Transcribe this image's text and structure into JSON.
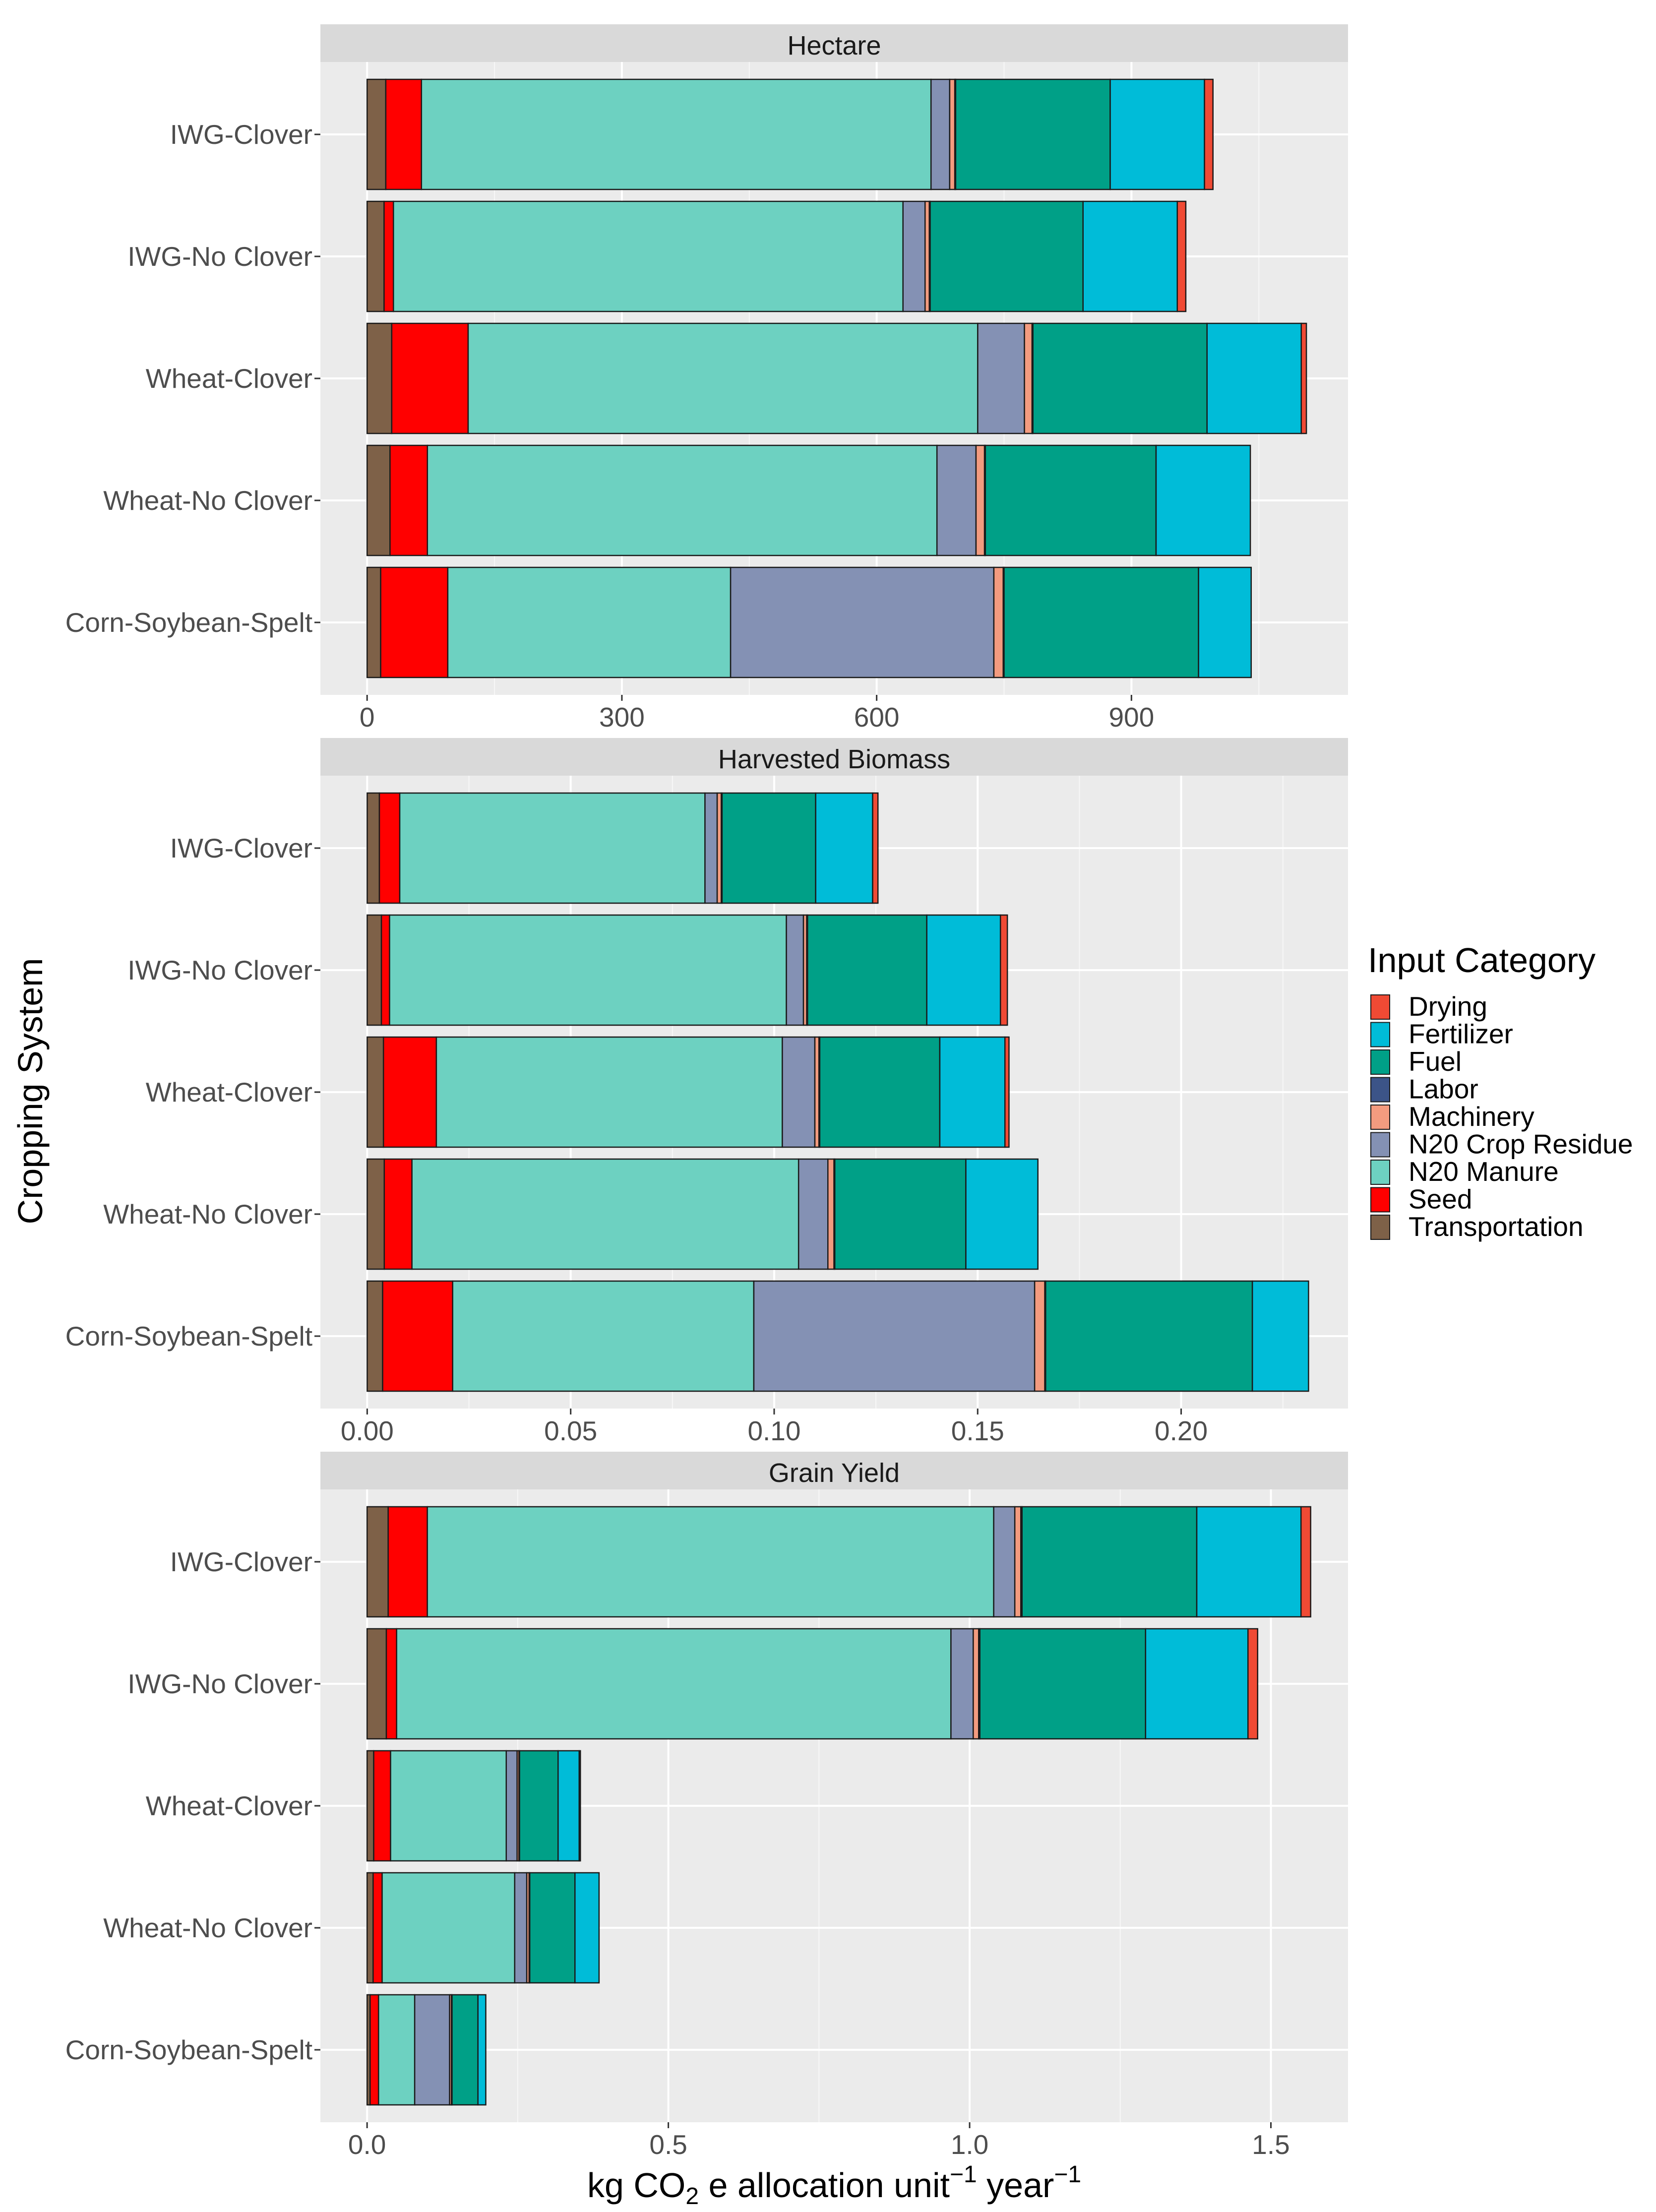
{
  "chart_data": {
    "type": "bar",
    "orientation": "horizontal",
    "stacked": true,
    "ylabel": "Cropping System",
    "xlabel": {
      "main": "kg CO",
      "sub": "2",
      "mid": " e allocation unit",
      "sup1": "−1",
      "mid2": " year",
      "sup2": "−1"
    },
    "legend": {
      "title": "Input Category",
      "placement": "right",
      "entries": [
        "Drying",
        "Fertilizer",
        "Fuel",
        "Labor",
        "Machinery",
        "N20 Crop Residue",
        "N20 Manure",
        "Seed",
        "Transportation"
      ]
    },
    "stack_order": [
      "Transportation",
      "Seed",
      "N20 Manure",
      "N20 Crop Residue",
      "Machinery",
      "Labor",
      "Fuel",
      "Fertilizer",
      "Drying"
    ],
    "colors": {
      "Drying": "#f04a34",
      "Fertilizer": "#00bcd8",
      "Fuel": "#00a087",
      "Labor": "#3c5488",
      "Machinery": "#f39b7f",
      "N20 Crop Residue": "#8491b4",
      "N20 Manure": "#6dd1c1",
      "Seed": "#ff0000",
      "Transportation": "#7e6148"
    },
    "categories": [
      "IWG-Clover",
      "IWG-No Clover",
      "Wheat-Clover",
      "Wheat-No Clover",
      "Corn-Soybean-Spelt"
    ],
    "panels": [
      {
        "title": "Hectare",
        "xlim": [
          -55,
          1155
        ],
        "ticks": [
          0,
          300,
          600,
          900
        ],
        "tick_labels": [
          "0",
          "300",
          "600",
          "900"
        ],
        "values": {
          "IWG-Clover": {
            "Transportation": 22,
            "Seed": 42,
            "N20 Manure": 600,
            "N20 Crop Residue": 22,
            "Machinery": 6,
            "Labor": 1,
            "Fuel": 182,
            "Fertilizer": 111,
            "Drying": 10
          },
          "IWG-No Clover": {
            "Transportation": 20,
            "Seed": 11,
            "N20 Manure": 600,
            "N20 Crop Residue": 26,
            "Machinery": 5,
            "Labor": 1,
            "Fuel": 180,
            "Fertilizer": 111,
            "Drying": 10
          },
          "Wheat-Clover": {
            "Transportation": 29,
            "Seed": 90,
            "N20 Manure": 600,
            "N20 Crop Residue": 55,
            "Machinery": 9,
            "Labor": 1,
            "Fuel": 205,
            "Fertilizer": 111,
            "Drying": 6
          },
          "Wheat-No Clover": {
            "Transportation": 27,
            "Seed": 44,
            "N20 Manure": 600,
            "N20 Crop Residue": 46,
            "Machinery": 10,
            "Labor": 1,
            "Fuel": 201,
            "Fertilizer": 111,
            "Drying": 0
          },
          "Corn-Soybean-Spelt": {
            "Transportation": 16,
            "Seed": 79,
            "N20 Manure": 333,
            "N20 Crop Residue": 310,
            "Machinery": 11,
            "Labor": 1,
            "Fuel": 229,
            "Fertilizer": 62,
            "Drying": 0
          }
        }
      },
      {
        "title": "Harvested Biomass",
        "xlim": [
          -0.0115,
          0.241
        ],
        "ticks": [
          0,
          0.05,
          0.1,
          0.15,
          0.2
        ],
        "tick_labels": [
          "0.00",
          "0.05",
          "0.10",
          "0.15",
          "0.20"
        ],
        "values": {
          "IWG-Clover": {
            "Transportation": 0.003,
            "Seed": 0.005,
            "N20 Manure": 0.075,
            "N20 Crop Residue": 0.003,
            "Machinery": 0.001,
            "Labor": 0.0002,
            "Fuel": 0.023,
            "Fertilizer": 0.014,
            "Drying": 0.0013
          },
          "IWG-No Clover": {
            "Transportation": 0.0035,
            "Seed": 0.002,
            "N20 Manure": 0.0975,
            "N20 Crop Residue": 0.0042,
            "Machinery": 0.0008,
            "Labor": 0.0002,
            "Fuel": 0.0293,
            "Fertilizer": 0.0181,
            "Drying": 0.0017
          },
          "Wheat-Clover": {
            "Transportation": 0.004,
            "Seed": 0.013,
            "N20 Manure": 0.085,
            "N20 Crop Residue": 0.008,
            "Machinery": 0.001,
            "Labor": 0.0002,
            "Fuel": 0.0295,
            "Fertilizer": 0.016,
            "Drying": 0.001
          },
          "Wheat-No Clover": {
            "Transportation": 0.0042,
            "Seed": 0.0068,
            "N20 Manure": 0.095,
            "N20 Crop Residue": 0.0072,
            "Machinery": 0.0015,
            "Labor": 0.0002,
            "Fuel": 0.0322,
            "Fertilizer": 0.0177,
            "Drying": 0
          },
          "Corn-Soybean-Spelt": {
            "Transportation": 0.0038,
            "Seed": 0.0172,
            "N20 Manure": 0.074,
            "N20 Crop Residue": 0.069,
            "Machinery": 0.0025,
            "Labor": 0.0002,
            "Fuel": 0.0508,
            "Fertilizer": 0.0138,
            "Drying": 0
          }
        }
      },
      {
        "title": "Grain Yield",
        "xlim": [
          -0.0775,
          1.628
        ],
        "ticks": [
          0,
          0.5,
          1,
          1.5
        ],
        "tick_labels": [
          "0.0",
          "0.5",
          "1.0",
          "1.5"
        ],
        "values": {
          "IWG-Clover": {
            "Transportation": 0.035,
            "Seed": 0.065,
            "N20 Manure": 0.94,
            "N20 Crop Residue": 0.035,
            "Machinery": 0.01,
            "Labor": 0.002,
            "Fuel": 0.29,
            "Fertilizer": 0.173,
            "Drying": 0.016
          },
          "IWG-No Clover": {
            "Transportation": 0.032,
            "Seed": 0.017,
            "N20 Manure": 0.92,
            "N20 Crop Residue": 0.037,
            "Machinery": 0.009,
            "Labor": 0.002,
            "Fuel": 0.275,
            "Fertilizer": 0.17,
            "Drying": 0.016
          },
          "Wheat-Clover": {
            "Transportation": 0.011,
            "Seed": 0.028,
            "N20 Manure": 0.192,
            "N20 Crop Residue": 0.018,
            "Machinery": 0.003,
            "Labor": 0.001,
            "Fuel": 0.064,
            "Fertilizer": 0.035,
            "Drying": 0.002
          },
          "Wheat-No Clover": {
            "Transportation": 0.01,
            "Seed": 0.015,
            "N20 Manure": 0.22,
            "N20 Crop Residue": 0.02,
            "Machinery": 0.004,
            "Labor": 0.001,
            "Fuel": 0.075,
            "Fertilizer": 0.04,
            "Drying": 0
          },
          "Corn-Soybean-Spelt": {
            "Transportation": 0.005,
            "Seed": 0.014,
            "N20 Manure": 0.06,
            "N20 Crop Residue": 0.058,
            "Machinery": 0.003,
            "Labor": 0.001,
            "Fuel": 0.043,
            "Fertilizer": 0.013,
            "Drying": 0
          }
        }
      }
    ]
  }
}
